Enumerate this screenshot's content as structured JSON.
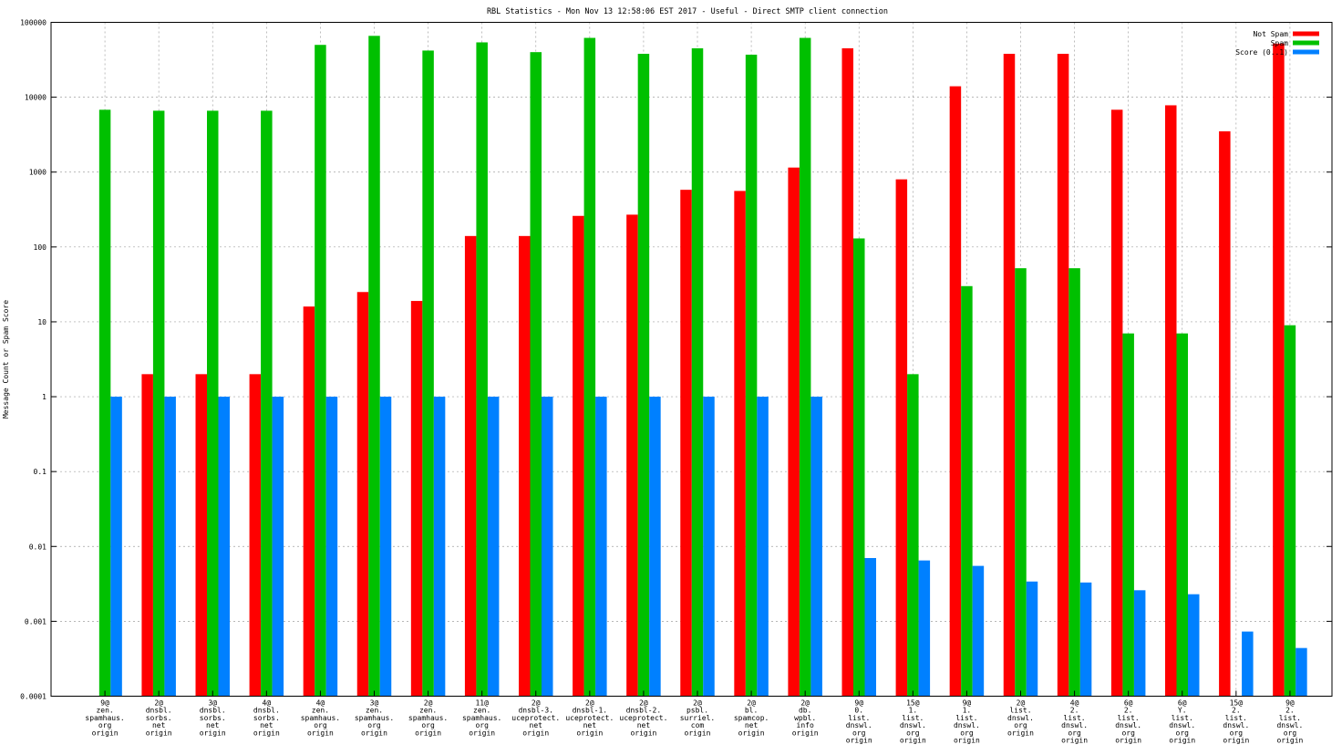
{
  "chart_data": {
    "type": "bar",
    "title": "RBL Statistics - Mon Nov 13 12:58:06 EST 2017 - Useful - Direct SMTP client connection",
    "xlabel": "",
    "ylabel": "Message Count or Spam Score",
    "yscale": "log",
    "ylim": [
      0.0001,
      100000
    ],
    "yticks": [
      "0.0001",
      "0.001",
      "0.01",
      "0.1",
      "1",
      "10",
      "100",
      "1000",
      "10000",
      "100000"
    ],
    "grid": true,
    "legend_position": "top-right",
    "categories": [
      "9@\nzen.\nspamhaus.\norg\norigin",
      "2@\ndnsbl.\nsorbs.\nnet\norigin",
      "3@\ndnsbl.\nsorbs.\nnet\norigin",
      "4@\ndnsbl.\nsorbs.\nnet\norigin",
      "4@\nzen.\nspamhaus.\norg\norigin",
      "3@\nzen.\nspamhaus.\norg\norigin",
      "2@\nzen.\nspamhaus.\norg\norigin",
      "11@\nzen.\nspamhaus.\norg\norigin",
      "2@\ndnsbl-3.\nuceprotect.\nnet\norigin",
      "2@\ndnsbl-1.\nuceprotect.\nnet\norigin",
      "2@\ndnsbl-2.\nuceprotect.\nnet\norigin",
      "2@\npsbl.\nsurriel.\ncom\norigin",
      "2@\nbl.\nspamcop.\nnet\norigin",
      "2@\ndb.\nwpbl.\ninfo\norigin",
      "9@\n0.\nlist.\ndnswl.\norg\norigin",
      "15@\n1.\nlist.\ndnswl.\norg\norigin",
      "9@\n1.\nlist.\ndnswl.\norg\norigin",
      "2@\nlist.\ndnswl.\norg\norigin",
      "4@\n2.\nlist.\ndnswl.\norg\norigin",
      "6@\n2.\nlist.\ndnswl.\norg\norigin",
      "6@\nY.\nlist.\ndnswl.\norg\norigin",
      "15@\n2.\nlist.\ndnswl.\norg\norigin",
      "9@\n2.\nlist.\ndnswl.\norg\norigin"
    ],
    "series": [
      {
        "name": "Not Spam",
        "color": "#ff0000",
        "values": [
          null,
          2,
          2,
          2,
          16,
          25,
          19,
          140,
          140,
          260,
          270,
          580,
          560,
          1150,
          45000,
          800,
          14000,
          38000,
          38000,
          6800,
          7800,
          3500,
          52000
        ]
      },
      {
        "name": "Spam",
        "color": "#00c000",
        "values": [
          6800,
          6600,
          6600,
          6600,
          50000,
          66000,
          42000,
          54000,
          40000,
          62000,
          38000,
          45000,
          37000,
          62000,
          130,
          2,
          30,
          52,
          52,
          7,
          7,
          null,
          9
        ]
      },
      {
        "name": "Score (0..1)",
        "color": "#0080ff",
        "values": [
          1,
          1,
          1,
          1,
          1,
          1,
          1,
          1,
          1,
          1,
          1,
          1,
          1,
          1,
          0.007,
          0.0065,
          0.0055,
          0.0034,
          0.0033,
          0.0026,
          0.0023,
          0.00073,
          0.00044
        ]
      }
    ]
  }
}
